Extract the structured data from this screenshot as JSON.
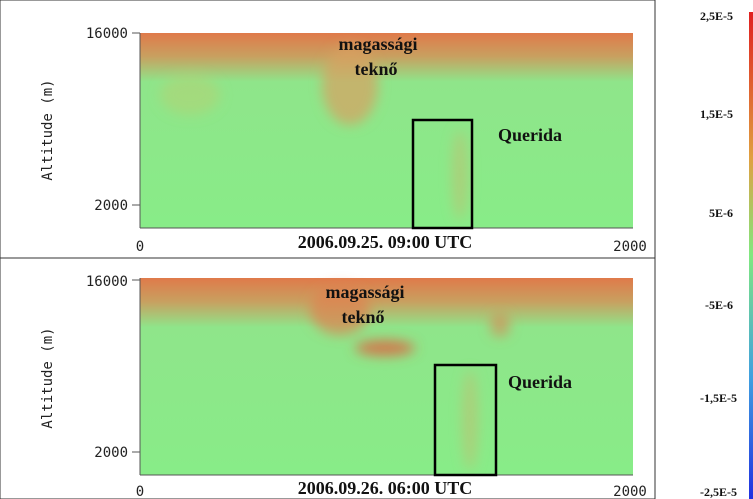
{
  "panels": [
    {
      "y_axis_label": "Altitude (m)",
      "y_ticks": [
        "16000",
        "2000"
      ],
      "x_ticks": [
        "0",
        "2000"
      ],
      "title": "2006.09.25. 09:00 UTC",
      "annotation": [
        "magassági",
        "teknő"
      ],
      "box_label": "Querida"
    },
    {
      "y_axis_label": "Altitude (m)",
      "y_ticks": [
        "16000",
        "2000"
      ],
      "x_ticks": [
        "0",
        "2000"
      ],
      "title": "2006.09.26. 06:00 UTC",
      "annotation": [
        "magassági",
        "teknő"
      ],
      "box_label": "Querida"
    }
  ],
  "colorbar": {
    "labels": [
      "2,5E-5",
      "1,5E-5",
      "5E-6",
      "-5E-6",
      "-1,5E-5",
      "-2,5E-5"
    ]
  }
}
